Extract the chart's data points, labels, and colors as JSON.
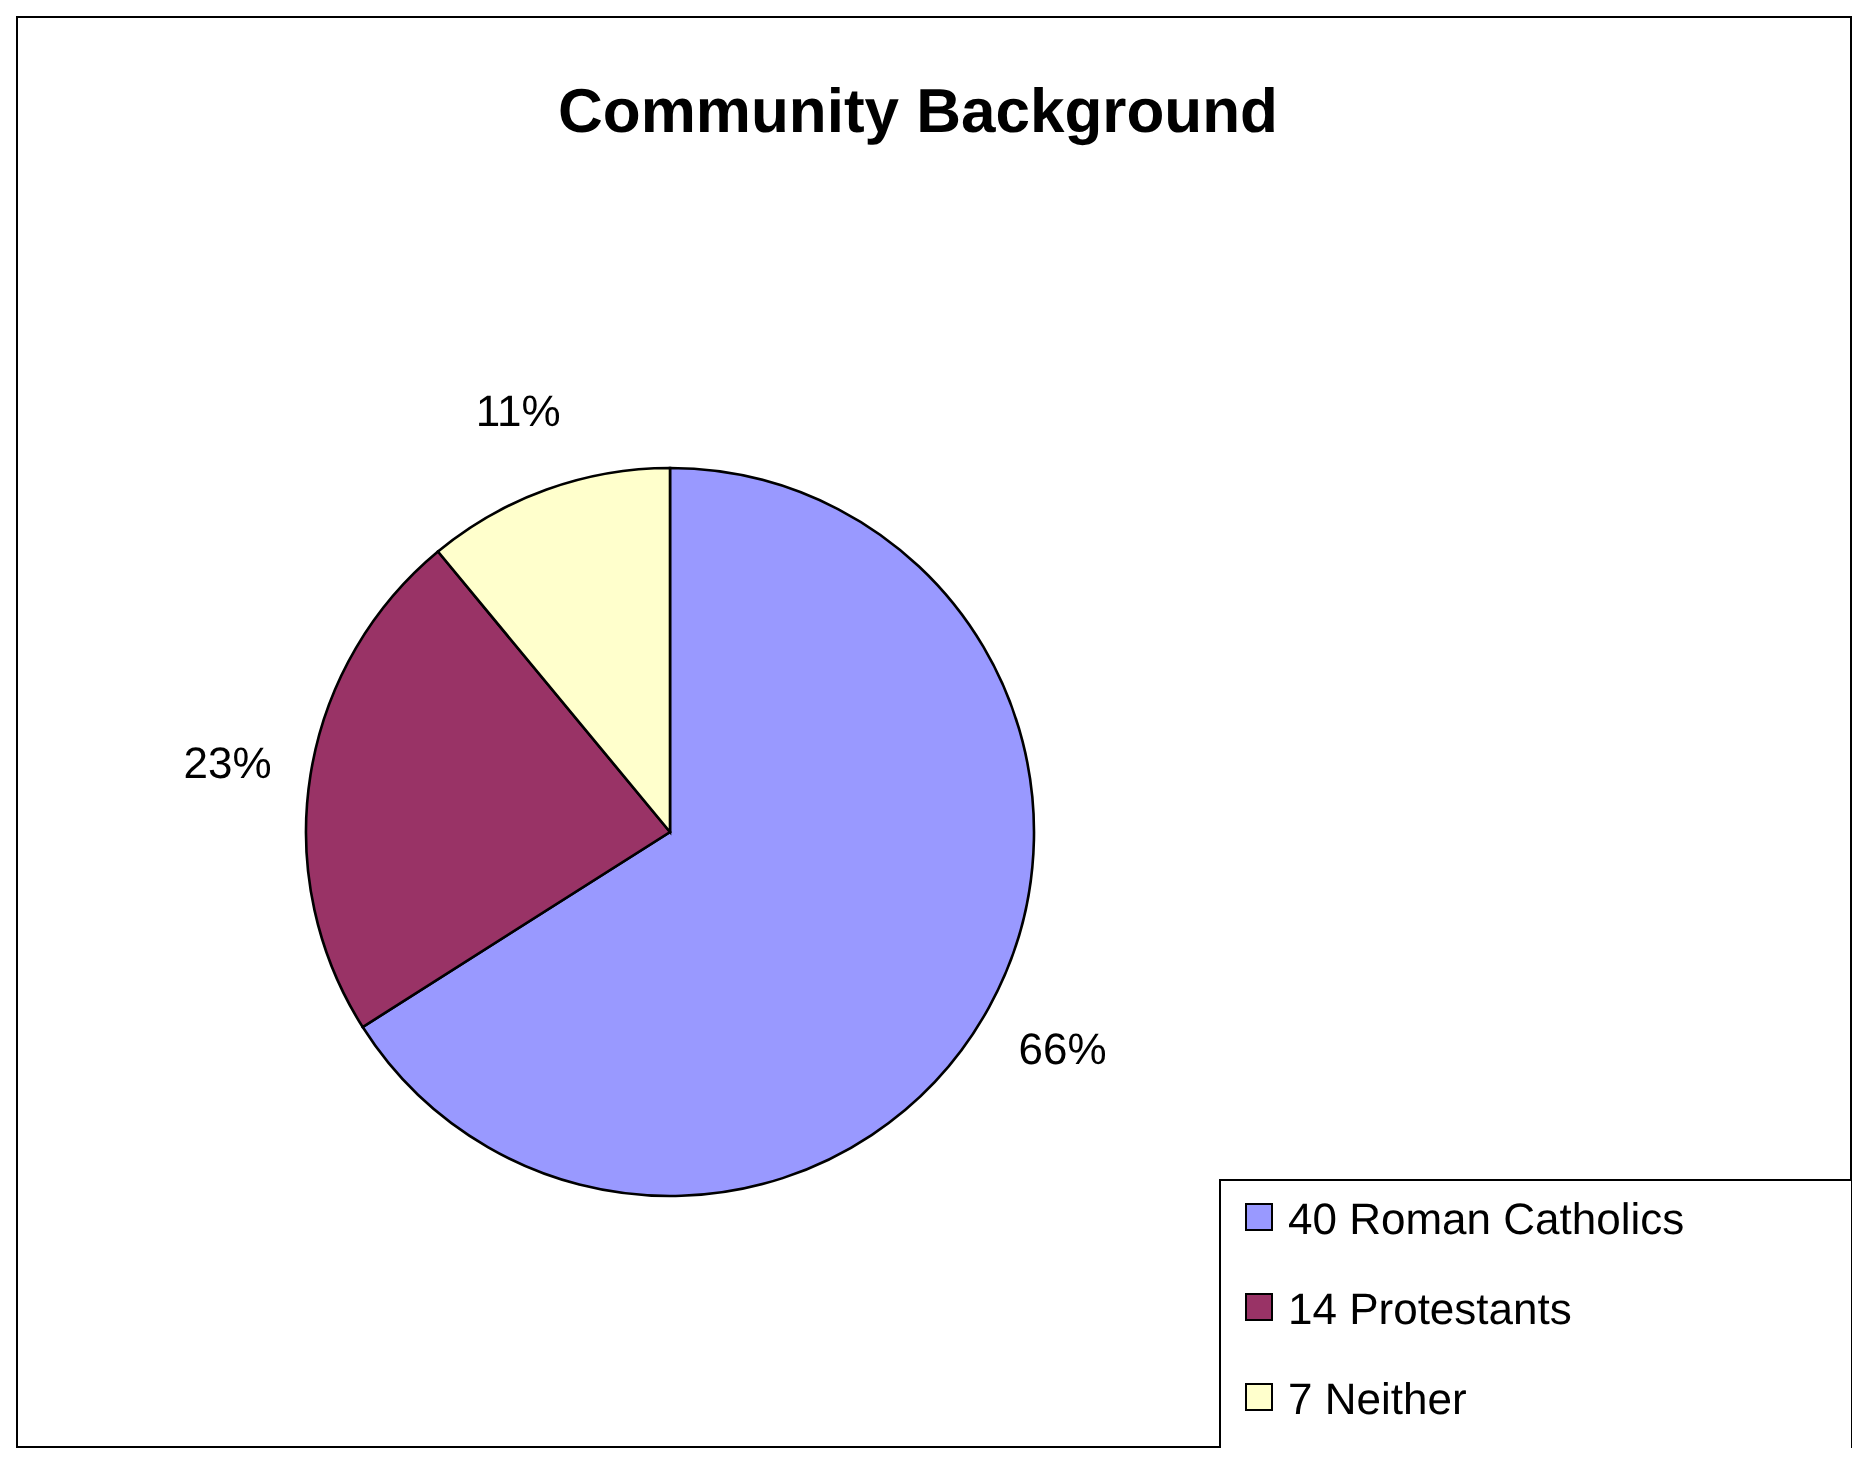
{
  "chart_data": {
    "type": "pie",
    "title": "Community Background",
    "categories": [
      "40 Roman Catholics",
      "14 Protestants",
      "7 Neither"
    ],
    "values": [
      66,
      23,
      11
    ],
    "colors": [
      "#9999ff",
      "#993366",
      "#ffffcc"
    ],
    "value_labels": [
      "66%",
      "23%",
      "11%"
    ],
    "legend": "bottom right"
  }
}
